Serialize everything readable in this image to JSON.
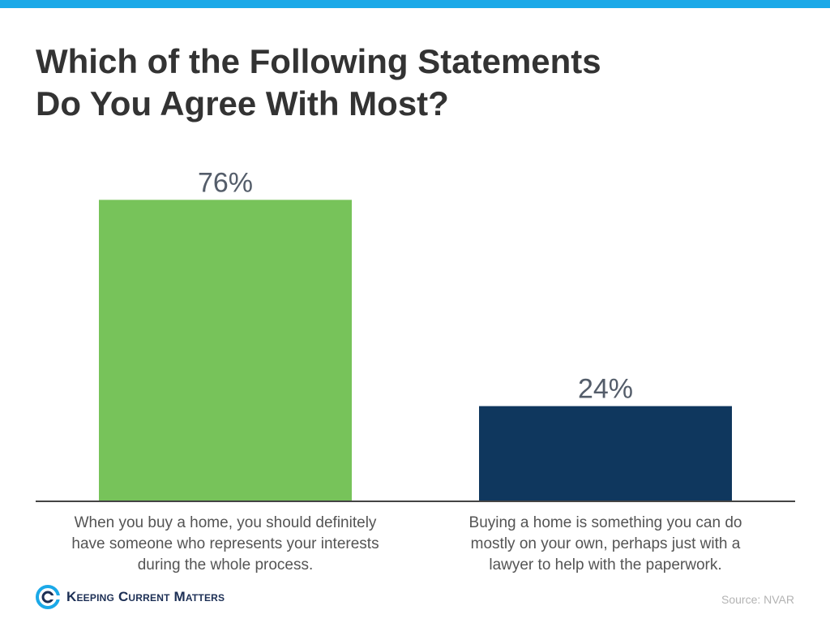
{
  "colors": {
    "top_bar": "#1ba9e8",
    "title": "#333333",
    "bar_green": "#77c35a",
    "bar_navy": "#0f375e",
    "value_label": "#545d6a",
    "category_label": "#545454",
    "axis": "#444444",
    "brand": "#1c2f55",
    "brand_accent": "#1ba9e8",
    "source": "#b3b3b3"
  },
  "chart_data": {
    "type": "bar",
    "title": "Which of the Following Statements Do You Agree With Most?",
    "title_lines": [
      "Which of the Following Statements",
      "Do You Agree With Most?"
    ],
    "categories": [
      "When you buy a home, you should definitely have someone who represents your interests during the whole process.",
      "Buying a home is something you can do mostly on your own, perhaps just with a lawyer to help with the paperwork."
    ],
    "category_lines": [
      [
        "When you buy a home, you should definitely",
        "have someone who represents your interests",
        "during the whole process."
      ],
      [
        "Buying a home is something you can do",
        "mostly on your own, perhaps just with a",
        "lawyer to help with the paperwork."
      ]
    ],
    "values": [
      76,
      24
    ],
    "value_labels": [
      "76%",
      "24%"
    ],
    "bar_colors": [
      "#77c35a",
      "#0f375e"
    ],
    "ylim": [
      0,
      100
    ],
    "xlabel": "",
    "ylabel": "",
    "grid": false,
    "legend": "none"
  },
  "footer": {
    "logo_text": "Keeping Current Matters",
    "logo_icon": "kcm-swirl-icon",
    "source": "Source: NVAR"
  }
}
